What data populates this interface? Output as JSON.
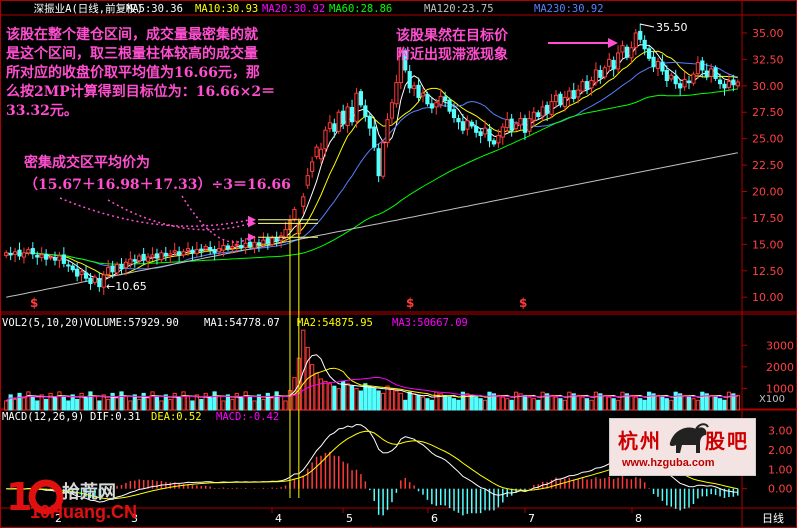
{
  "legend_main": {
    "title": "深振业A",
    "subtitle": "(日线,前复权)",
    "ma5": "MA5:30.36",
    "ma10": "MA10:30.93",
    "ma20": "MA20:30.92",
    "ma60": "MA60:28.86",
    "ma120": "MA120:23.75",
    "ma230": "MA230:30.92"
  },
  "legend_vol": {
    "title": "VOL2(5,10,20)",
    "volume": "VOLUME:57929.90",
    "ma1": "MA1:54778.07",
    "ma2": "MA2:54875.95",
    "ma3": "MA3:50667.09"
  },
  "legend_macd": {
    "title": "MACD(12,26,9)",
    "dif": "DIF:0.31",
    "dea": "DEA:0.52",
    "macd": "MACD:-0.42"
  },
  "annotations": {
    "left_block": [
      "该股在整个建仓区间，成交量最密集的就",
      "是这个区间，取三根量柱体较高的成交量",
      "所对应的收盘价取平均值为16.66元，那",
      "么按2MP计算得到目标位为：16.66×2＝",
      "33.32元。"
    ],
    "mid_block": [
      "密集成交区平均价为",
      "（15.67＋16.98＋17.33）÷3＝16.66"
    ],
    "right_block": [
      "该股果然在目标价",
      "附近出现滞涨现象"
    ]
  },
  "markers": {
    "low_label": "←10.65",
    "high_label": "35.50",
    "dollar_sign": "$",
    "x100": "X100",
    "period": "日线"
  },
  "watermarks": {
    "hz_cn": "杭州",
    "hz_cn2": "股吧",
    "hz_url": "www.hzguba.com",
    "ten_cn": "拾荒网",
    "ten_url": "10Huang.CN"
  },
  "colors": {
    "up": "#ff3a3a",
    "down": "#54ffff",
    "ma5": "#ffffff",
    "ma10": "#ffff00",
    "ma20": "#ff00ff",
    "ma60": "#00ff00",
    "ma120": "#c0c0c0",
    "ma230": "#5580ff",
    "annotation": "#ff4fd0",
    "axis": "#b00000"
  },
  "chart_data": [
    {
      "type": "candlestick",
      "title": "深振业A (日线,前复权)",
      "y_ticks": [
        10.0,
        12.5,
        15.0,
        17.5,
        20.0,
        22.5,
        25.0,
        27.5,
        30.0,
        32.5,
        35.0
      ],
      "ylim": [
        8.6,
        36.7
      ],
      "x_ticks": [
        "2",
        "3",
        "4",
        "5",
        "6",
        "7",
        "8"
      ],
      "annotations": [
        "←10.65",
        "35.50"
      ],
      "series": [
        {
          "name": "MA5",
          "values": [
            30.36
          ]
        },
        {
          "name": "MA10",
          "values": [
            30.93
          ]
        },
        {
          "name": "MA20",
          "values": [
            30.92
          ]
        },
        {
          "name": "MA60",
          "values": [
            28.86
          ]
        },
        {
          "name": "MA120",
          "values": [
            23.75
          ]
        },
        {
          "name": "MA230",
          "values": [
            30.92
          ]
        }
      ],
      "closes": [
        14.2,
        14.0,
        14.3,
        13.9,
        14.2,
        14.5,
        14.1,
        13.8,
        14.0,
        13.6,
        13.8,
        13.5,
        13.9,
        13.2,
        13.0,
        12.6,
        12.0,
        12.4,
        11.8,
        11.3,
        11.9,
        11.0,
        12.1,
        12.8,
        12.4,
        13.1,
        12.7,
        13.3,
        13.6,
        13.4,
        13.9,
        13.5,
        13.8,
        14.0,
        13.7,
        14.2,
        13.9,
        14.1,
        14.4,
        14.0,
        14.3,
        14.6,
        14.2,
        14.5,
        14.4,
        14.8,
        14.5,
        14.2,
        14.6,
        14.9,
        14.6,
        14.8,
        15.0,
        14.7,
        15.1,
        14.8,
        15.2,
        15.0,
        15.4,
        15.1,
        15.6,
        15.3,
        15.8,
        16.4,
        17.3,
        18.3,
        16.9,
        19.5,
        21.5,
        22.8,
        24.2,
        24.0,
        25.8,
        26.5,
        25.7,
        27.5,
        26.4,
        28.0,
        26.6,
        29.3,
        28.2,
        27.1,
        26.0,
        24.2,
        21.5,
        24.6,
        26.8,
        28.4,
        30.3,
        33.2,
        31.5,
        29.8,
        30.0,
        28.9,
        29.3,
        28.3,
        27.9,
        28.4,
        29.0,
        28.6,
        27.6,
        27.0,
        26.6,
        25.8,
        26.7,
        26.2,
        25.6,
        25.3,
        26.0,
        24.8,
        24.5,
        25.3,
        26.1,
        26.8,
        25.8,
        26.4,
        26.9,
        25.6,
        26.9,
        27.5,
        27.1,
        28.0,
        27.4,
        28.5,
        29.1,
        28.2,
        28.9,
        29.5,
        28.8,
        29.6,
        30.4,
        29.7,
        30.5,
        31.5,
        30.8,
        31.7,
        32.5,
        31.6,
        33.1,
        33.8,
        32.7,
        33.6,
        35.0,
        34.4,
        33.5,
        32.6,
        31.8,
        32.3,
        31.4,
        30.5,
        31.0,
        30.2,
        29.8,
        30.6,
        30.3,
        31.1,
        32.2,
        31.5,
        30.9,
        31.6,
        30.7,
        30.2,
        29.8,
        30.4,
        30.1,
        30.36
      ]
    },
    {
      "type": "bar",
      "title": "VOL2(5,10,20)",
      "y_ticks": [
        1000,
        2000,
        3000
      ],
      "unit": "X100",
      "series": [
        {
          "name": "VOLUME",
          "values": [
            57929.9
          ]
        },
        {
          "name": "MA1",
          "values": [
            54778.07
          ]
        },
        {
          "name": "MA2",
          "values": [
            54875.95
          ]
        },
        {
          "name": "MA3",
          "values": [
            50667.09
          ]
        }
      ]
    },
    {
      "type": "bar",
      "title": "MACD(12,26,9)",
      "y_ticks": [
        0.0,
        1.0,
        2.0,
        3.0
      ],
      "series": [
        {
          "name": "DIF",
          "values": [
            0.31
          ]
        },
        {
          "name": "DEA",
          "values": [
            0.52
          ]
        },
        {
          "name": "MACD",
          "values": [
            -0.42
          ]
        }
      ]
    }
  ]
}
